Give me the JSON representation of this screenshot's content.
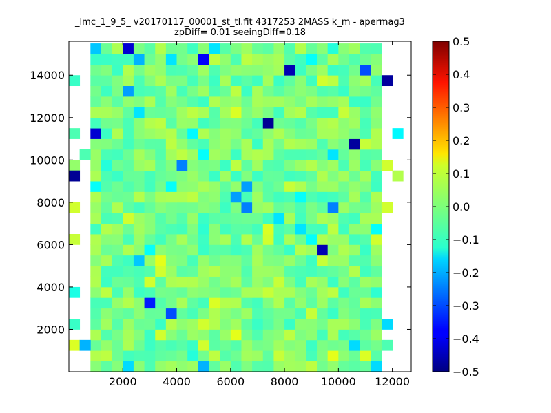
{
  "chart_data": {
    "type": "heatmap",
    "title": "_lmc_1_9_5_ v20170117_00001_st_tl.fit 4317253 2MASS k_m - apermag3",
    "subtitle": "zpDiff= 0.01 seeingDiff=0.18",
    "xlabel": "",
    "ylabel": "",
    "xlim": [
      0,
      12700
    ],
    "ylim": [
      0,
      15600
    ],
    "x_ticks": [
      2000,
      4000,
      6000,
      8000,
      10000,
      12000
    ],
    "y_ticks": [
      2000,
      4000,
      6000,
      8000,
      10000,
      12000,
      14000
    ],
    "colorbar": {
      "colormap": "jet",
      "range": [
        -0.5,
        0.5
      ],
      "ticks": [
        "0.5",
        "0.4",
        "0.3",
        "0.2",
        "0.1",
        "0.0",
        "−0.1",
        "−0.2",
        "−0.3",
        "−0.4",
        "−0.5"
      ]
    },
    "grid_origin": [
      0,
      0
    ],
    "cell_width": 400,
    "cell_height": 500,
    "grid_columns": 32,
    "grid_rows": 31,
    "cells": [
      [
        7,
        0,
        -0.05
      ],
      [
        8,
        0,
        0.02
      ],
      [
        12,
        0,
        -0.06
      ],
      [
        2,
        1,
        0.05
      ],
      [
        5,
        1,
        -0.06
      ],
      [
        13,
        1,
        0.06
      ],
      [
        3,
        2,
        0.02
      ],
      [
        10,
        2,
        -0.04
      ],
      [
        12,
        2,
        0.08
      ],
      [
        26,
        2,
        -0.08
      ],
      [
        9,
        4,
        0.05
      ],
      [
        11,
        4,
        0.03
      ],
      [
        20,
        4,
        -0.07
      ],
      [
        24,
        4,
        0.04
      ],
      [
        7,
        6,
        -0.35
      ],
      [
        13,
        6,
        0.09
      ],
      [
        17,
        6,
        -0.06
      ],
      [
        26,
        6,
        -0.03
      ],
      [
        0,
        7,
        -0.1
      ],
      [
        3,
        7,
        0.06
      ],
      [
        17,
        7,
        0.04
      ],
      [
        28,
        7,
        -0.08
      ],
      [
        4,
        9,
        -0.06
      ],
      [
        8,
        9,
        0.08
      ],
      [
        12,
        10,
        0.02
      ],
      [
        23,
        10,
        0.07
      ],
      [
        7,
        11,
        -0.12
      ],
      [
        12,
        11,
        -0.07
      ],
      [
        22,
        11,
        0.03
      ],
      [
        0,
        12,
        0.07
      ],
      [
        8,
        12,
        -0.06
      ],
      [
        14,
        12,
        0.07
      ],
      [
        28,
        12,
        0.08
      ],
      [
        3,
        13,
        0.05
      ],
      [
        18,
        13,
        0.09
      ],
      [
        23,
        13,
        -0.06
      ],
      [
        27,
        14,
        0.04
      ],
      [
        5,
        14,
        0.03
      ],
      [
        2,
        14,
        0.04
      ],
      [
        11,
        16,
        0.06
      ],
      [
        24,
        16,
        -0.06
      ],
      [
        14,
        16,
        -0.05
      ],
      [
        20,
        17,
        0.07
      ],
      [
        7,
        17,
        -0.06
      ],
      [
        9,
        17,
        0.07
      ],
      [
        0,
        19,
        0.02
      ],
      [
        22,
        19,
        -0.05
      ],
      [
        15,
        19,
        0.06
      ],
      [
        3,
        19,
        0.05
      ],
      [
        11,
        20,
        0.03
      ],
      [
        1,
        20,
        -0.05
      ],
      [
        18,
        20,
        0.04
      ],
      [
        10,
        20,
        0.06
      ],
      [
        27,
        21,
        0.07
      ],
      [
        5,
        21,
        -0.06
      ],
      [
        16,
        21,
        0.04
      ],
      [
        9,
        22,
        0.05
      ],
      [
        2,
        23,
        -0.06
      ],
      [
        14,
        22,
        0.03
      ],
      [
        24,
        23,
        0.05
      ],
      [
        8,
        23,
        0.06
      ],
      [
        3,
        24,
        0.04
      ],
      [
        11,
        24,
        0.06
      ],
      [
        19,
        24,
        -0.06
      ],
      [
        25,
        24,
        0.07
      ],
      [
        15,
        26,
        0.06
      ],
      [
        7,
        26,
        -0.05
      ],
      [
        17,
        26,
        0.04
      ],
      [
        12,
        26,
        0.03
      ],
      [
        0,
        27,
        -0.07
      ],
      [
        24,
        27,
        0.06
      ],
      [
        5,
        28,
        0.05
      ],
      [
        10,
        28,
        -0.05
      ],
      [
        23,
        28,
        0.03
      ],
      [
        6,
        29,
        0.05
      ],
      [
        17,
        29,
        0.04
      ],
      [
        13,
        29,
        0.06
      ],
      [
        2,
        30,
        0.04
      ],
      [
        16,
        30,
        0.03
      ],
      [
        21,
        30,
        0.05
      ],
      [
        2,
        30,
        -0.18
      ],
      [
        5,
        30,
        -0.42
      ],
      [
        8,
        30,
        0.05
      ],
      [
        13,
        30,
        -0.15
      ],
      [
        24,
        30,
        -0.09
      ],
      [
        6,
        29,
        -0.2
      ],
      [
        9,
        29,
        -0.15
      ],
      [
        12,
        29,
        -0.38
      ],
      [
        16,
        29,
        0.06
      ],
      [
        22,
        29,
        -0.12
      ],
      [
        27,
        28,
        -0.3
      ],
      [
        20,
        28,
        -0.45
      ],
      [
        29,
        27,
        -0.47
      ],
      [
        23,
        27,
        0.08
      ],
      [
        5,
        26,
        -0.22
      ],
      [
        25,
        26,
        -0.07
      ],
      [
        6,
        24,
        -0.15
      ],
      [
        21,
        24,
        0.05
      ],
      [
        15,
        24,
        0.09
      ],
      [
        18,
        23,
        -0.48
      ],
      [
        7,
        23,
        0.05
      ],
      [
        11,
        22,
        -0.13
      ],
      [
        2,
        22,
        -0.42
      ],
      [
        0,
        22,
        -0.05
      ],
      [
        30,
        22,
        -0.13
      ],
      [
        26,
        21,
        -0.47
      ],
      [
        9,
        21,
        0.06
      ],
      [
        18,
        21,
        0.04
      ],
      [
        24,
        20,
        -0.15
      ],
      [
        12,
        20,
        -0.12
      ],
      [
        4,
        20,
        -0.06
      ],
      [
        3,
        19,
        -0.09
      ],
      [
        10,
        19,
        -0.25
      ],
      [
        29,
        19,
        0.08
      ],
      [
        22,
        19,
        0.05
      ],
      [
        0,
        18,
        -0.48
      ],
      [
        30,
        18,
        0.05
      ],
      [
        2,
        17,
        -0.12
      ],
      [
        16,
        17,
        -0.22
      ],
      [
        9,
        17,
        -0.12
      ],
      [
        15,
        16,
        -0.22
      ],
      [
        6,
        16,
        0.05
      ],
      [
        21,
        16,
        -0.12
      ],
      [
        24,
        15,
        -0.25
      ],
      [
        16,
        15,
        -0.25
      ],
      [
        0,
        15,
        0.08
      ],
      [
        29,
        15,
        0.08
      ],
      [
        19,
        14,
        -0.15
      ],
      [
        5,
        14,
        0.08
      ],
      [
        21,
        13,
        -0.15
      ],
      [
        12,
        13,
        -0.08
      ],
      [
        28,
        13,
        -0.12
      ],
      [
        22,
        12,
        -0.12
      ],
      [
        26,
        12,
        -0.06
      ],
      [
        18,
        12,
        0.08
      ],
      [
        14,
        12,
        0.04
      ],
      [
        24,
        13,
        0.06
      ],
      [
        27,
        11,
        -0.07
      ],
      [
        23,
        11,
        -0.45
      ],
      [
        21,
        11,
        0.05
      ],
      [
        6,
        10,
        -0.18
      ],
      [
        8,
        10,
        0.1
      ],
      [
        17,
        10,
        0.04
      ],
      [
        3,
        9,
        -0.06
      ],
      [
        26,
        9,
        0.05
      ],
      [
        13,
        9,
        0.05
      ],
      [
        7,
        8,
        0.08
      ],
      [
        19,
        8,
        0.07
      ],
      [
        10,
        8,
        0.05
      ],
      [
        24,
        7,
        0.06
      ],
      [
        18,
        7,
        0.07
      ],
      [
        16,
        7,
        0.04
      ],
      [
        14,
        6,
        0.05
      ],
      [
        5,
        6,
        0.05
      ],
      [
        27,
        6,
        0.04
      ],
      [
        9,
        5,
        -0.3
      ],
      [
        22,
        5,
        0.07
      ],
      [
        17,
        5,
        -0.05
      ],
      [
        0,
        4,
        -0.07
      ],
      [
        12,
        4,
        0.08
      ],
      [
        29,
        4,
        -0.16
      ],
      [
        15,
        3,
        0.1
      ],
      [
        20,
        3,
        0.06
      ],
      [
        8,
        3,
        0.08
      ],
      [
        0,
        2,
        0.09
      ],
      [
        1,
        2,
        -0.2
      ],
      [
        29,
        2,
        -0.05
      ],
      [
        26,
        2,
        -0.16
      ],
      [
        3,
        1,
        0.06
      ],
      [
        11,
        1,
        -0.09
      ],
      [
        19,
        1,
        0.07
      ],
      [
        27,
        1,
        0.09
      ],
      [
        5,
        0,
        -0.16
      ],
      [
        12,
        0,
        -0.2
      ],
      [
        22,
        0,
        0.06
      ],
      [
        28,
        0,
        -0.16
      ],
      [
        24,
        1,
        0.1
      ]
    ]
  }
}
